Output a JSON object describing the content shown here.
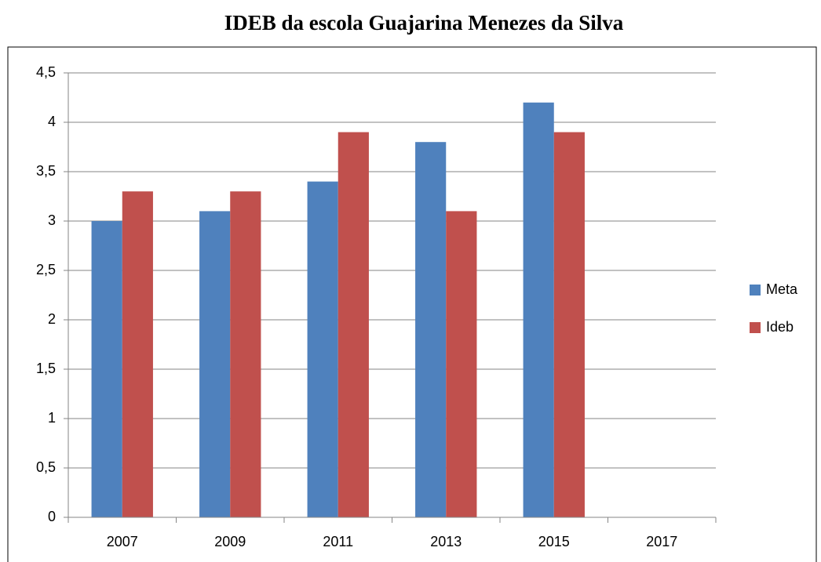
{
  "chart_data": {
    "type": "bar",
    "title": "IDEB da escola Guajarina Menezes da Silva",
    "categories": [
      "2007",
      "2009",
      "2011",
      "2013",
      "2015",
      "2017"
    ],
    "series": [
      {
        "name": "Meta",
        "color": "#4f81bd",
        "values": [
          3,
          3.1,
          3.4,
          3.8,
          4.2,
          null
        ]
      },
      {
        "name": "Ideb",
        "color": "#c0504d",
        "values": [
          3.3,
          3.3,
          3.9,
          3.1,
          3.9,
          null
        ]
      }
    ],
    "ylim": [
      0,
      4.5
    ],
    "yticks": [
      0,
      {
        "value": 0.5,
        "label": "0,5"
      },
      1,
      {
        "value": 1.5,
        "label": "1,5"
      },
      2,
      {
        "value": 2.5,
        "label": "2,5"
      },
      3,
      {
        "value": 3.5,
        "label": "3,5"
      },
      4,
      {
        "value": 4.5,
        "label": "4,5"
      }
    ],
    "grid": true,
    "legend": "right"
  }
}
